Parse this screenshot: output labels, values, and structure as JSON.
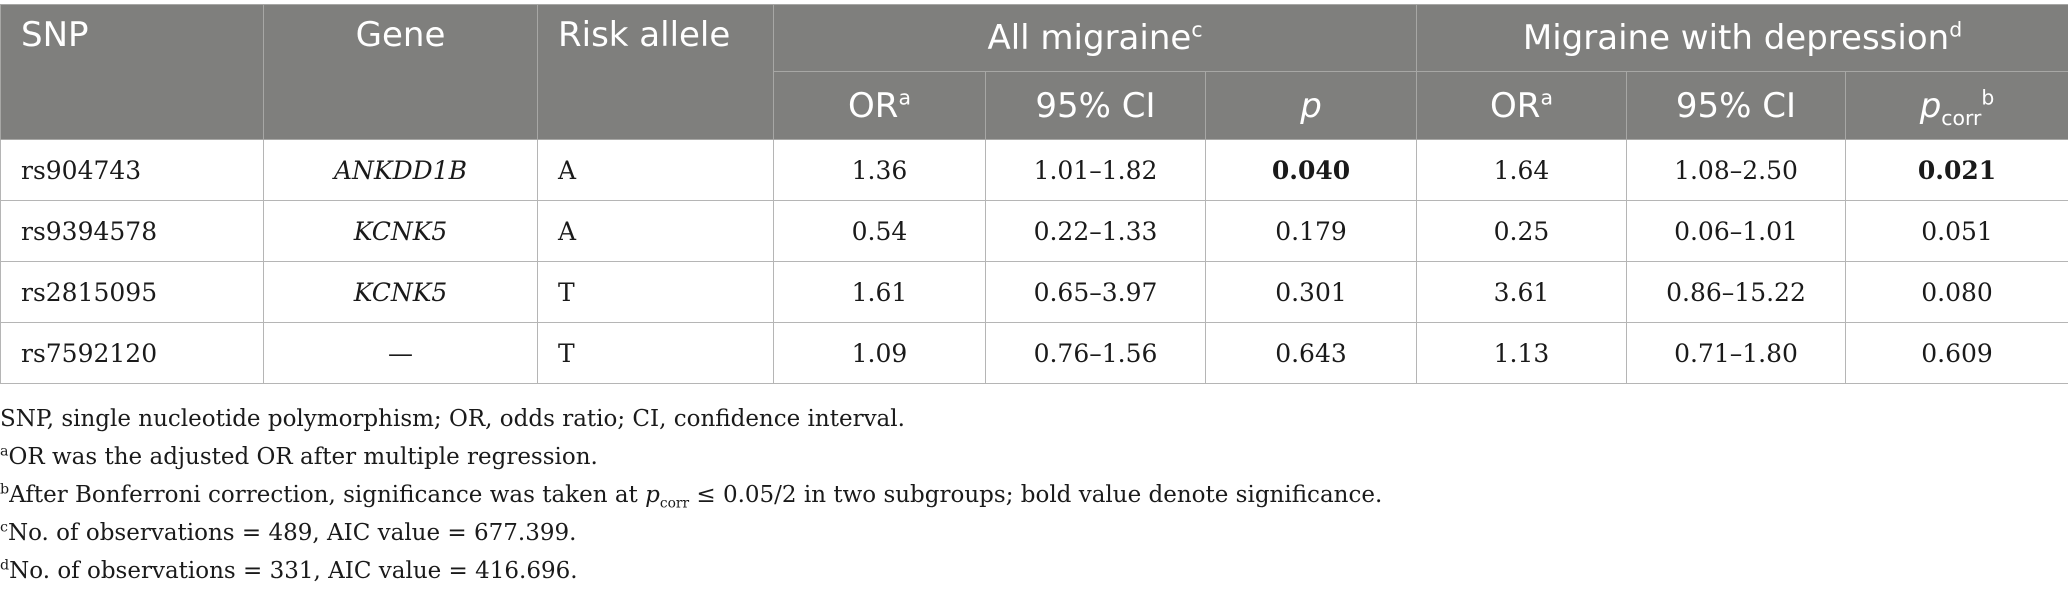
{
  "table": {
    "headers": {
      "snp": "SNP",
      "gene": "Gene",
      "risk_allele": "Risk allele",
      "all_migraine": "All migraine",
      "all_migraine_sup": "c",
      "mig_dep": "Migraine with depression",
      "mig_dep_sup": "d",
      "or": "OR",
      "or_sup": "a",
      "ci": "95% CI",
      "p": "p",
      "pcorr_p": "p",
      "pcorr_sub": "corr",
      "pcorr_sup": "b"
    },
    "rows": [
      {
        "snp": "rs904743",
        "gene": "ANKDD1B",
        "allele": "A",
        "or1": "1.36",
        "ci1": "1.01–1.82",
        "p1": "0.040",
        "or2": "1.64",
        "ci2": "1.08–2.50",
        "p2": "0.021"
      },
      {
        "snp": "rs9394578",
        "gene": "KCNK5",
        "allele": "A",
        "or1": "0.54",
        "ci1": "0.22–1.33",
        "p1": "0.179",
        "or2": "0.25",
        "ci2": "0.06–1.01",
        "p2": "0.051"
      },
      {
        "snp": "rs2815095",
        "gene": "KCNK5",
        "allele": "T",
        "or1": "1.61",
        "ci1": "0.65–3.97",
        "p1": "0.301",
        "or2": "3.61",
        "ci2": "0.86–15.22",
        "p2": "0.080"
      },
      {
        "snp": "rs7592120",
        "gene": "—",
        "allele": "T",
        "or1": "1.09",
        "ci1": "0.76–1.56",
        "p1": "0.643",
        "or2": "1.13",
        "ci2": "0.71–1.80",
        "p2": "0.609"
      }
    ]
  },
  "notes": {
    "abbrev": "SNP, single nucleotide polymorphism; OR, odds ratio; CI, confidence interval.",
    "a_mark": "a",
    "a_text": "OR was the adjusted OR after multiple regression.",
    "b_mark": "b",
    "b_pre": "After Bonferroni correction, significance was taken at ",
    "b_p": "p",
    "b_sub": "corr",
    "b_post": " ≤ 0.05/2 in two subgroups; bold value denote significance.",
    "c_mark": "c",
    "c_text": "No. of observations = 489, AIC value = 677.399.",
    "d_mark": "d",
    "d_text": "No. of observations = 331, AIC value = 416.696."
  }
}
